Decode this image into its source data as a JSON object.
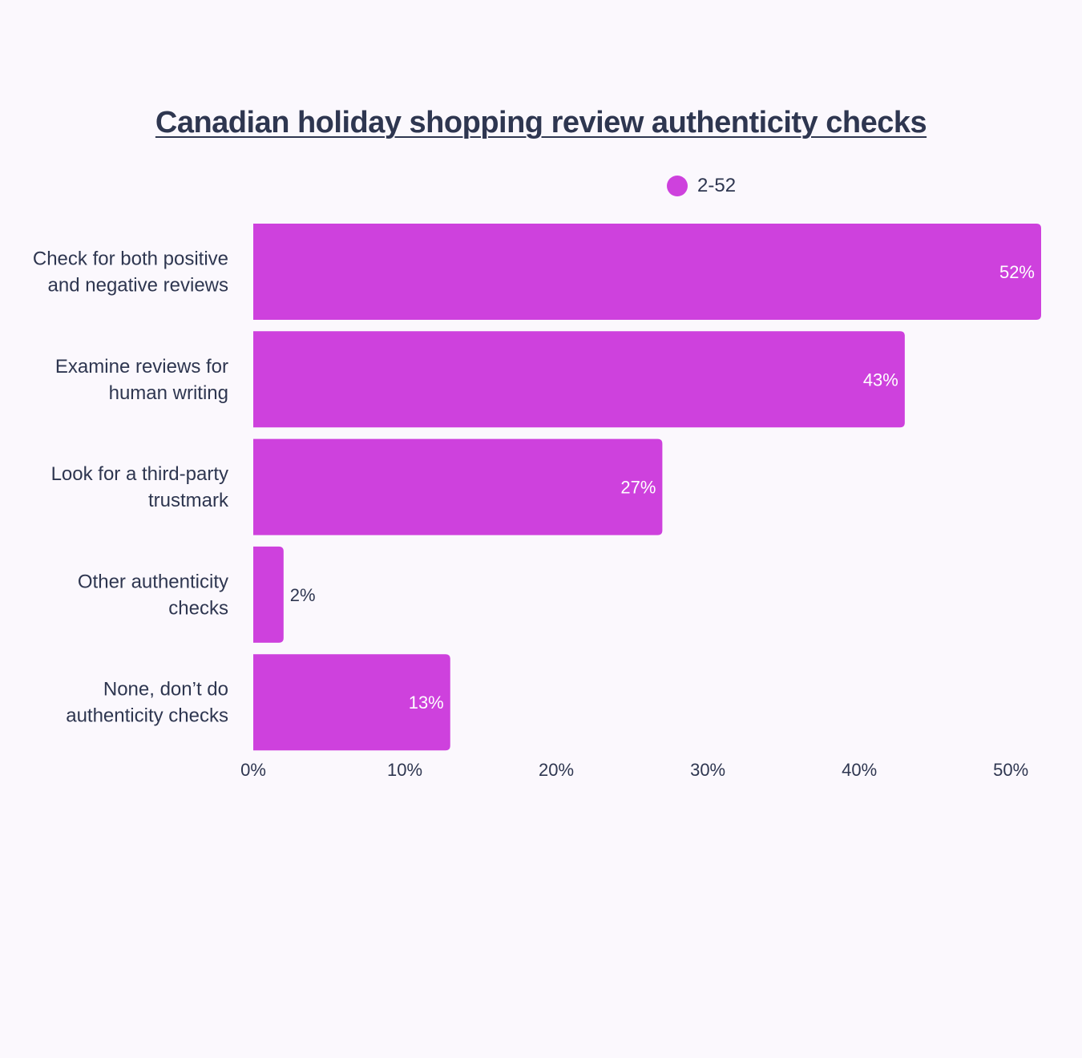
{
  "colors": {
    "bar": "#CE41DD",
    "text": "#2E3650",
    "label_inside": "#FFFFFF",
    "background": "#FBF8FD"
  },
  "chart_data": {
    "type": "bar",
    "orientation": "horizontal",
    "title": "Canadian holiday shopping review authenticity checks",
    "xlabel": "",
    "ylabel": "",
    "xlim": [
      0,
      52
    ],
    "x_ticks": [
      0,
      10,
      20,
      30,
      40,
      50
    ],
    "x_tick_labels": [
      "0%",
      "10%",
      "20%",
      "30%",
      "40%",
      "50%"
    ],
    "grid": false,
    "legend_position": "top-center",
    "categories": [
      [
        "Check for both positive",
        "and negative reviews"
      ],
      [
        "Examine reviews for",
        "human writing"
      ],
      [
        "Look for a third-party",
        "trustmark"
      ],
      [
        "Other authenticity",
        "checks"
      ],
      [
        "None, don’t do",
        "authenticity checks"
      ]
    ],
    "series": [
      {
        "name": "2-52",
        "color": "#CE41DD",
        "values": [
          52,
          43,
          27,
          2,
          13
        ],
        "value_labels": [
          "52%",
          "43%",
          "27%",
          "2%",
          "13%"
        ]
      }
    ]
  }
}
